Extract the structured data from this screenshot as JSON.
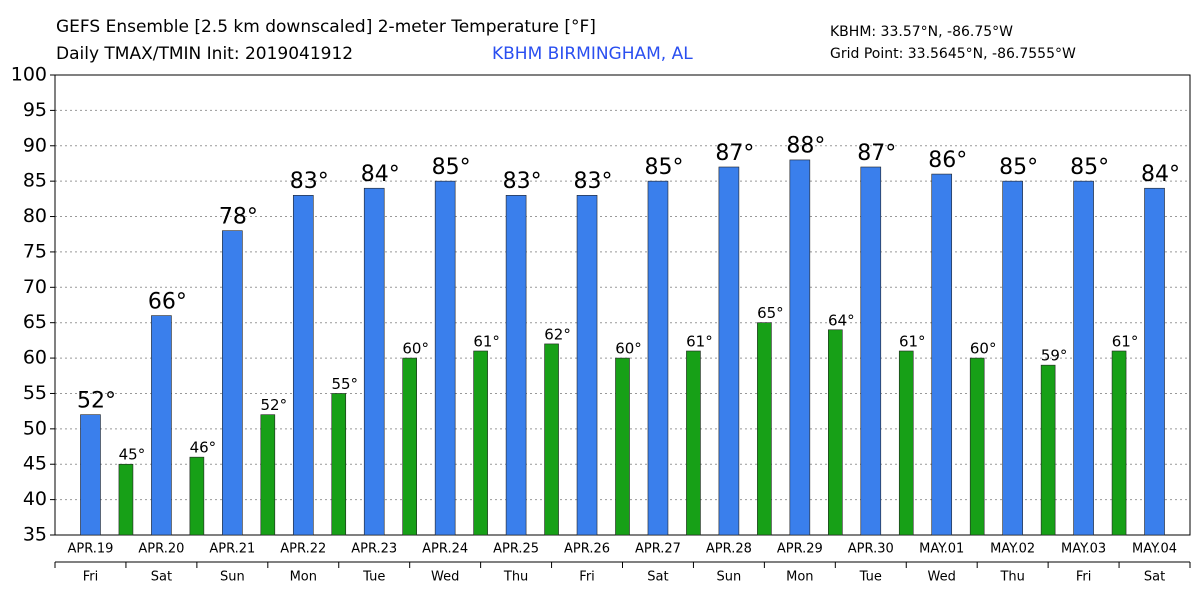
{
  "chart_data": {
    "type": "bar",
    "title": "GEFS Ensemble [2.5 km downscaled] 2-meter Temperature [°F]",
    "subtitle": "Daily TMAX/TMIN Init: 2019041912",
    "station": "KBHM BIRMINGHAM, AL",
    "station_coords": "KBHM: 33.57°N, -86.75°W",
    "grid_point": "Grid Point: 33.5645°N, -86.7555°W",
    "categories": [
      "APR.19",
      "APR.20",
      "APR.21",
      "APR.22",
      "APR.23",
      "APR.24",
      "APR.25",
      "APR.26",
      "APR.27",
      "APR.28",
      "APR.29",
      "APR.30",
      "MAY.01",
      "MAY.02",
      "MAY.03",
      "MAY.04"
    ],
    "weekdays": [
      "Fri",
      "Sat",
      "Sun",
      "Mon",
      "Tue",
      "Wed",
      "Thu",
      "Fri",
      "Sat",
      "Sun",
      "Mon",
      "Tue",
      "Wed",
      "Thu",
      "Fri",
      "Sat"
    ],
    "series": [
      {
        "color": "#3a7fec",
        "values": [
          52,
          66,
          78,
          83,
          84,
          85,
          83,
          83,
          85,
          87,
          88,
          87,
          86,
          85,
          85,
          84
        ],
        "value_labels": [
          "52°",
          "66°",
          "78°",
          "83°",
          "84°",
          "85°",
          "83°",
          "83°",
          "85°",
          "87°",
          "88°",
          "87°",
          "86°",
          "85°",
          "85°",
          "84°"
        ]
      },
      {
        "color": "#17a017",
        "values": [
          45,
          46,
          52,
          55,
          60,
          61,
          62,
          60,
          61,
          65,
          64,
          61,
          60,
          59,
          61,
          null
        ],
        "value_labels": [
          "45°",
          "46°",
          "52°",
          "55°",
          "60°",
          "61°",
          "62°",
          "60°",
          "61°",
          "65°",
          "64°",
          "61°",
          "60°",
          "59°",
          "61°",
          null
        ]
      }
    ],
    "ylim": [
      35,
      100
    ],
    "yticks": [
      35,
      40,
      45,
      50,
      55,
      60,
      65,
      70,
      75,
      80,
      85,
      90,
      95,
      100
    ],
    "grid": true
  }
}
